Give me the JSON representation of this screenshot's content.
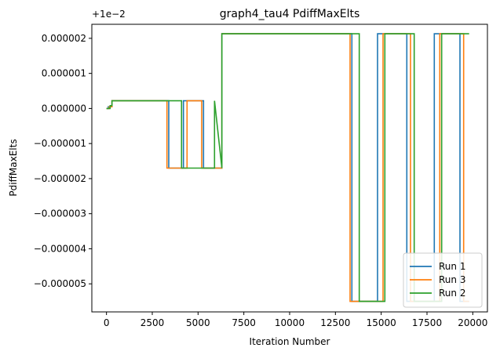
{
  "chart_data": {
    "type": "line",
    "title": "graph4_tau4 PdiffMaxElts",
    "xlabel": "Iteration Number",
    "ylabel": "PdiffMaxElts",
    "offset_label": "+1e−2",
    "xlim": [
      -800,
      20800
    ],
    "ylim": [
      -5.8e-06,
      2.4e-06
    ],
    "x_ticks": [
      0,
      2500,
      5000,
      7500,
      10000,
      12500,
      15000,
      17500,
      20000
    ],
    "x_tick_labels": [
      "0",
      "2500",
      "5000",
      "7500",
      "10000",
      "12500",
      "15000",
      "17500",
      "20000"
    ],
    "y_ticks": [
      2e-06,
      1e-06,
      0,
      -1e-06,
      -2e-06,
      -3e-06,
      -4e-06,
      -5e-06
    ],
    "y_tick_labels": [
      "0.000002",
      "0.000001",
      "0.000000",
      "−0.000001",
      "−0.000002",
      "−0.000003",
      "−0.000004",
      "−0.000005"
    ],
    "grid": false,
    "legend_position": "bottom-right",
    "series": [
      {
        "name": "Run 1",
        "color": "#1f77b4",
        "x": [
          0,
          100,
          100,
          300,
          300,
          3400,
          3400,
          4200,
          4200,
          5300,
          5300,
          6300,
          6300,
          13400,
          13400,
          14800,
          14800,
          16400,
          16400,
          17900,
          17900,
          19300,
          19300,
          19800
        ],
        "y": [
          0,
          0,
          5e-08,
          5e-08,
          2.2e-07,
          2.2e-07,
          -1.7e-06,
          -1.7e-06,
          2.2e-07,
          2.2e-07,
          -1.7e-06,
          -1.7e-06,
          2.13e-06,
          2.13e-06,
          -5.5e-06,
          -5.5e-06,
          2.13e-06,
          2.13e-06,
          -5.5e-06,
          -5.5e-06,
          2.13e-06,
          2.13e-06,
          -5.5e-06,
          -5.5e-06
        ]
      },
      {
        "name": "Run 3",
        "color": "#ff7f0e",
        "x": [
          0,
          150,
          150,
          300,
          300,
          3300,
          3300,
          4400,
          4400,
          5200,
          5200,
          6300,
          6300,
          13300,
          13300,
          15100,
          15100,
          16600,
          16600,
          18200,
          18200,
          19500,
          19500,
          19800
        ],
        "y": [
          0,
          0,
          5e-08,
          5e-08,
          2.2e-07,
          2.2e-07,
          -1.7e-06,
          -1.7e-06,
          2.2e-07,
          2.2e-07,
          -1.7e-06,
          -1.7e-06,
          2.13e-06,
          2.13e-06,
          -5.5e-06,
          -5.5e-06,
          2.13e-06,
          2.13e-06,
          -5.5e-06,
          -5.5e-06,
          2.13e-06,
          2.13e-06,
          -5.5e-06,
          -5.5e-06
        ]
      },
      {
        "name": "Run 2",
        "color": "#2ca02c",
        "x": [
          0,
          200,
          200,
          300,
          300,
          4100,
          4100,
          5900,
          5900,
          6300,
          6300,
          13800,
          13800,
          15200,
          15200,
          16800,
          16800,
          18300,
          18300,
          19800
        ],
        "y": [
          0,
          0,
          8e-08,
          8e-08,
          2.2e-07,
          2.2e-07,
          -1.7e-06,
          -1.7e-06,
          2.2e-07,
          -1.7e-06,
          2.13e-06,
          2.13e-06,
          -5.5e-06,
          -5.5e-06,
          2.13e-06,
          2.13e-06,
          -5.5e-06,
          -5.5e-06,
          2.13e-06,
          2.13e-06
        ]
      }
    ]
  }
}
